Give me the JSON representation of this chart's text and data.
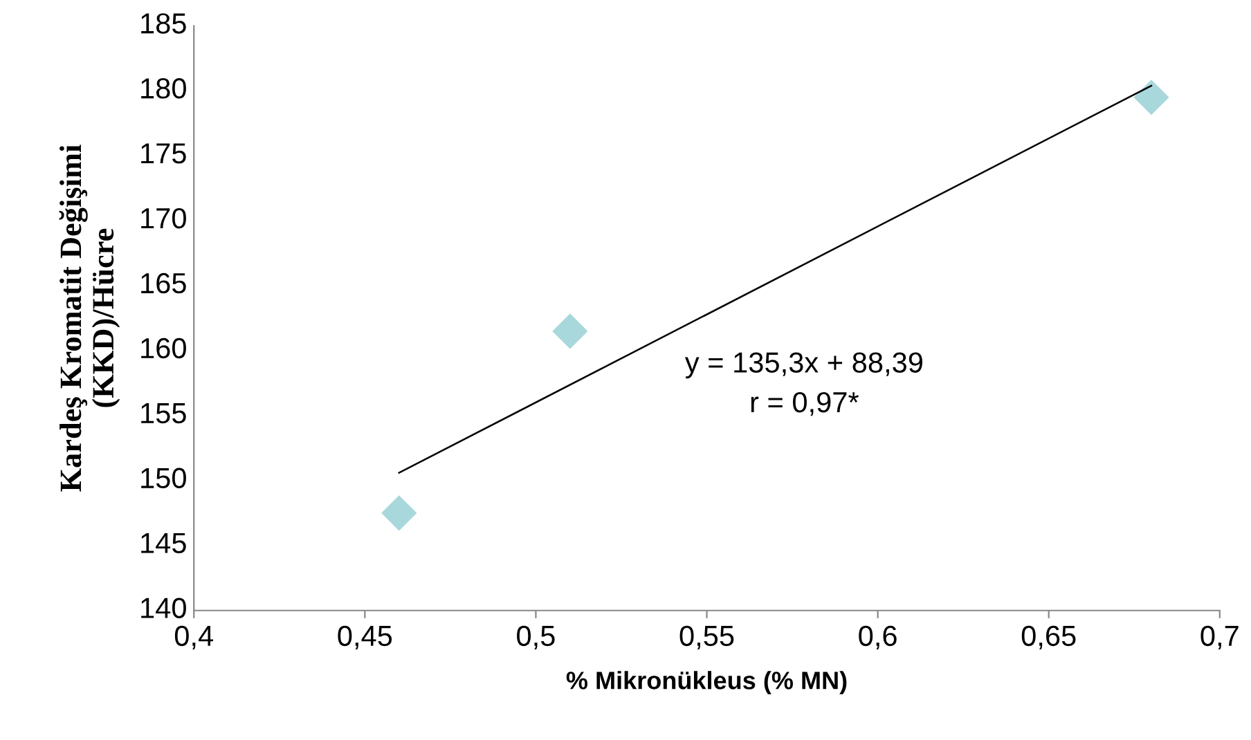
{
  "chart_data": {
    "type": "scatter",
    "xlabel": "% Mikronükleus (% MN)",
    "ylabel": "Kardeş Kromatit Değişimi\n(KKD)/Hücre",
    "series": [
      {
        "type": "scatter",
        "color": "#a8d8dc",
        "marker": "diamond",
        "x": [
          0.46,
          0.51,
          0.68
        ],
        "values": [
          147.5,
          161.5,
          179.5
        ]
      },
      {
        "type": "line",
        "color": "#000000",
        "marker": "none",
        "x": [
          0.46,
          0.68
        ],
        "values": [
          150.6,
          180.4
        ]
      }
    ],
    "xlim": [
      0.4,
      0.7
    ],
    "xticks": [
      {
        "value": 0.4,
        "label": "0,4"
      },
      {
        "value": 0.45,
        "label": "0,45"
      },
      {
        "value": 0.5,
        "label": "0,5"
      },
      {
        "value": 0.55,
        "label": "0,55"
      },
      {
        "value": 0.6,
        "label": "0,6"
      },
      {
        "value": 0.65,
        "label": "0,65"
      },
      {
        "value": 0.7,
        "label": "0,7"
      }
    ],
    "ylim": [
      140,
      185
    ],
    "yticks": [
      140,
      145,
      150,
      155,
      160,
      165,
      170,
      175,
      180,
      185
    ],
    "annotations": [
      "y = 135,3x + 88,39",
      "r = 0,97*"
    ],
    "grid": false,
    "legend": false
  }
}
